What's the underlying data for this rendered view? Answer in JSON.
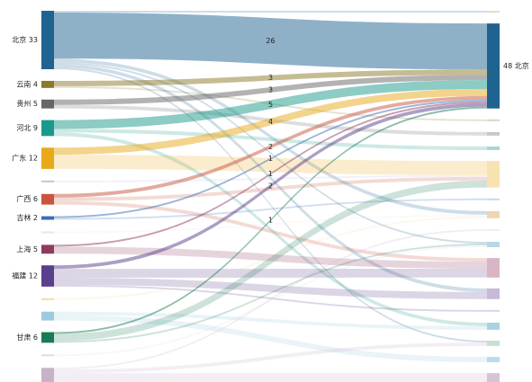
{
  "chart_data": {
    "type": "sankey",
    "left_nodes": [
      {
        "label": "北京 33",
        "value": 33,
        "color": "#1f6391"
      },
      {
        "label": "云南 4",
        "value": 4,
        "color": "#8c7a2a"
      },
      {
        "label": "贵州 5",
        "value": 5,
        "color": "#666666"
      },
      {
        "label": "河北 9",
        "value": 9,
        "color": "#1a9a8a"
      },
      {
        "label": "广东 12",
        "value": 12,
        "color": "#e8a91a"
      },
      {
        "label": null,
        "value": 1,
        "color": "#c9c0dd"
      },
      {
        "label": "广西 6",
        "value": 6,
        "color": "#c8553d"
      },
      {
        "label": "吉林 2",
        "value": 2,
        "color": "#3a6db5"
      },
      {
        "label": null,
        "value": 1,
        "color": "#e6e6e6"
      },
      {
        "label": "上海 5",
        "value": 5,
        "color": "#8e3b5f"
      },
      {
        "label": "福建 12",
        "value": 12,
        "color": "#5a3f8a"
      },
      {
        "label": null,
        "value": 1,
        "color": "#f5d9a6"
      },
      {
        "label": null,
        "value": 5,
        "color": "#9ccbe0"
      },
      {
        "label": "甘肃 6",
        "value": 6,
        "color": "#1a7a55"
      },
      {
        "label": null,
        "value": 1,
        "color": "#dddddd"
      },
      {
        "label": null,
        "value": 8,
        "color": "#c7b3c8"
      }
    ],
    "right_nodes": [
      {
        "label": null,
        "value": 1,
        "color": "#e3e0c0"
      },
      {
        "label": "48 北京",
        "value": 48,
        "color": "#1f6391"
      },
      {
        "label": null,
        "value": 1,
        "color": "#d9d5c0"
      },
      {
        "label": null,
        "value": 2,
        "color": "#c8c8c8"
      },
      {
        "label": null,
        "value": 2,
        "color": "#a9d6d0"
      },
      {
        "label": null,
        "value": 15,
        "color": "#f8e3b0"
      },
      {
        "label": null,
        "value": 1,
        "color": "#c8d6ef"
      },
      {
        "label": null,
        "value": 4,
        "color": "#eed7b0"
      },
      {
        "label": null,
        "value": 1,
        "color": "#eeeeee"
      },
      {
        "label": null,
        "value": 3,
        "color": "#b7d6e6"
      },
      {
        "label": null,
        "value": 11,
        "color": "#d9b5c6"
      },
      {
        "label": null,
        "value": 6,
        "color": "#c5bad8"
      },
      {
        "label": null,
        "value": 1,
        "color": "#dcd4e6"
      },
      {
        "label": null,
        "value": 4,
        "color": "#a8d2e2"
      },
      {
        "label": null,
        "value": 3,
        "color": "#c6e0d4"
      },
      {
        "label": null,
        "value": 3,
        "color": "#b9dcea"
      },
      {
        "label": null,
        "value": 5,
        "color": "#d6c3d6"
      }
    ],
    "links": [
      {
        "source": 0,
        "target": 1,
        "value": 26
      },
      {
        "source": 1,
        "target": 1,
        "value": 3
      },
      {
        "source": 2,
        "target": 1,
        "value": 3
      },
      {
        "source": 3,
        "target": 1,
        "value": 5
      },
      {
        "source": 4,
        "target": 1,
        "value": 4
      },
      {
        "source": 6,
        "target": 1,
        "value": 2
      },
      {
        "source": 7,
        "target": 1,
        "value": 1
      },
      {
        "source": 9,
        "target": 1,
        "value": 1
      },
      {
        "source": 10,
        "target": 1,
        "value": 2
      },
      {
        "source": 13,
        "target": 1,
        "value": 1
      }
    ],
    "other_links": [
      {
        "source": 0,
        "target": 0,
        "value": 1
      },
      {
        "source": 0,
        "target": 7,
        "value": 2
      },
      {
        "source": 0,
        "target": 9,
        "value": 1
      },
      {
        "source": 0,
        "target": 11,
        "value": 2
      },
      {
        "source": 0,
        "target": 14,
        "value": 1
      },
      {
        "source": 1,
        "target": 2,
        "value": 1
      },
      {
        "source": 2,
        "target": 3,
        "value": 2
      },
      {
        "source": 3,
        "target": 4,
        "value": 2
      },
      {
        "source": 3,
        "target": 13,
        "value": 2
      },
      {
        "source": 4,
        "target": 5,
        "value": 8
      },
      {
        "source": 5,
        "target": 5,
        "value": 1
      },
      {
        "source": 6,
        "target": 5,
        "value": 2
      },
      {
        "source": 6,
        "target": 10,
        "value": 2
      },
      {
        "source": 7,
        "target": 6,
        "value": 1
      },
      {
        "source": 8,
        "target": 7,
        "value": 1
      },
      {
        "source": 9,
        "target": 10,
        "value": 4
      },
      {
        "source": 10,
        "target": 10,
        "value": 5
      },
      {
        "source": 10,
        "target": 11,
        "value": 4
      },
      {
        "source": 10,
        "target": 12,
        "value": 1
      },
      {
        "source": 11,
        "target": 7,
        "value": 1
      },
      {
        "source": 12,
        "target": 13,
        "value": 2
      },
      {
        "source": 12,
        "target": 15,
        "value": 3
      },
      {
        "source": 13,
        "target": 5,
        "value": 4
      },
      {
        "source": 13,
        "target": 9,
        "value": 1
      },
      {
        "source": 14,
        "target": 9,
        "value": 1
      },
      {
        "source": 15,
        "target": 16,
        "value": 5
      },
      {
        "source": 15,
        "target": 14,
        "value": 2
      },
      {
        "source": 15,
        "target": 8,
        "value": 1
      }
    ]
  }
}
